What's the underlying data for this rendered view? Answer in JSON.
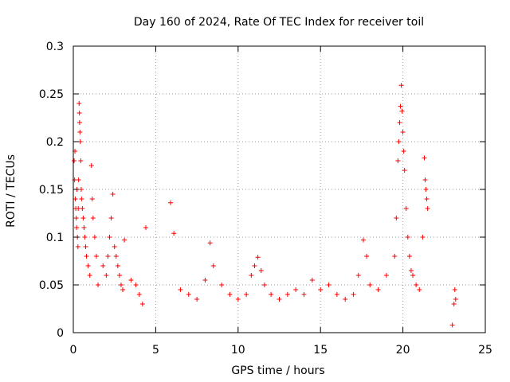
{
  "chart_data": {
    "type": "scatter",
    "title": "Day 160 of 2024, Rate Of TEC Index for receiver toil",
    "xlabel": "GPS time / hours",
    "ylabel": "ROTI / TECUs",
    "xlim": [
      0,
      25
    ],
    "ylim": [
      0,
      0.3
    ],
    "xticks": [
      0,
      5,
      10,
      15,
      20,
      25
    ],
    "yticks": [
      0,
      0.05,
      0.1,
      0.15,
      0.2,
      0.25,
      0.3
    ],
    "xtick_labels": [
      "0",
      "5",
      "10",
      "15",
      "20",
      "25"
    ],
    "ytick_labels": [
      "0",
      "0.05",
      "0.1",
      "0.15",
      "0.2",
      "0.25",
      "0.3"
    ],
    "grid": true,
    "marker": "+",
    "color": "#ff0000",
    "series": [
      {
        "name": "ROTI",
        "points": [
          [
            0.05,
            0.18
          ],
          [
            0.08,
            0.16
          ],
          [
            0.1,
            0.19
          ],
          [
            0.12,
            0.14
          ],
          [
            0.15,
            0.13
          ],
          [
            0.18,
            0.12
          ],
          [
            0.2,
            0.11
          ],
          [
            0.22,
            0.15
          ],
          [
            0.25,
            0.1
          ],
          [
            0.28,
            0.09
          ],
          [
            0.3,
            0.13
          ],
          [
            0.32,
            0.16
          ],
          [
            0.35,
            0.24
          ],
          [
            0.37,
            0.23
          ],
          [
            0.38,
            0.22
          ],
          [
            0.4,
            0.21
          ],
          [
            0.42,
            0.2
          ],
          [
            0.45,
            0.18
          ],
          [
            0.48,
            0.15
          ],
          [
            0.5,
            0.14
          ],
          [
            0.55,
            0.13
          ],
          [
            0.6,
            0.12
          ],
          [
            0.65,
            0.11
          ],
          [
            0.7,
            0.1
          ],
          [
            0.75,
            0.09
          ],
          [
            0.8,
            0.08
          ],
          [
            0.9,
            0.07
          ],
          [
            1.0,
            0.06
          ],
          [
            1.1,
            0.175
          ],
          [
            1.15,
            0.14
          ],
          [
            1.2,
            0.12
          ],
          [
            1.3,
            0.1
          ],
          [
            1.4,
            0.08
          ],
          [
            1.5,
            0.05
          ],
          [
            1.8,
            0.07
          ],
          [
            2.0,
            0.06
          ],
          [
            2.1,
            0.08
          ],
          [
            2.2,
            0.1
          ],
          [
            2.3,
            0.12
          ],
          [
            2.4,
            0.145
          ],
          [
            2.5,
            0.09
          ],
          [
            2.6,
            0.08
          ],
          [
            2.7,
            0.07
          ],
          [
            2.8,
            0.06
          ],
          [
            2.9,
            0.05
          ],
          [
            3.0,
            0.045
          ],
          [
            3.1,
            0.097
          ],
          [
            3.5,
            0.055
          ],
          [
            3.8,
            0.05
          ],
          [
            4.0,
            0.04
          ],
          [
            4.2,
            0.03
          ],
          [
            4.4,
            0.11
          ],
          [
            5.9,
            0.136
          ],
          [
            6.1,
            0.104
          ],
          [
            6.5,
            0.045
          ],
          [
            7.0,
            0.04
          ],
          [
            7.5,
            0.035
          ],
          [
            8.0,
            0.055
          ],
          [
            8.3,
            0.094
          ],
          [
            8.5,
            0.07
          ],
          [
            9.0,
            0.05
          ],
          [
            9.5,
            0.04
          ],
          [
            10.0,
            0.035
          ],
          [
            10.5,
            0.04
          ],
          [
            10.8,
            0.06
          ],
          [
            11.0,
            0.07
          ],
          [
            11.2,
            0.079
          ],
          [
            11.4,
            0.065
          ],
          [
            11.6,
            0.05
          ],
          [
            12.0,
            0.04
          ],
          [
            12.5,
            0.035
          ],
          [
            13.0,
            0.04
          ],
          [
            13.5,
            0.045
          ],
          [
            14.0,
            0.04
          ],
          [
            14.5,
            0.055
          ],
          [
            15.0,
            0.045
          ],
          [
            15.5,
            0.05
          ],
          [
            16.0,
            0.04
          ],
          [
            16.5,
            0.035
          ],
          [
            17.0,
            0.04
          ],
          [
            17.3,
            0.06
          ],
          [
            17.6,
            0.097
          ],
          [
            17.8,
            0.08
          ],
          [
            18.0,
            0.05
          ],
          [
            18.5,
            0.045
          ],
          [
            19.0,
            0.06
          ],
          [
            19.5,
            0.08
          ],
          [
            19.6,
            0.12
          ],
          [
            19.7,
            0.18
          ],
          [
            19.75,
            0.2
          ],
          [
            19.8,
            0.22
          ],
          [
            19.85,
            0.237
          ],
          [
            19.9,
            0.259
          ],
          [
            19.95,
            0.232
          ],
          [
            20.0,
            0.21
          ],
          [
            20.05,
            0.19
          ],
          [
            20.1,
            0.17
          ],
          [
            20.2,
            0.13
          ],
          [
            20.3,
            0.1
          ],
          [
            20.4,
            0.08
          ],
          [
            20.5,
            0.065
          ],
          [
            20.6,
            0.06
          ],
          [
            20.8,
            0.05
          ],
          [
            21.0,
            0.045
          ],
          [
            21.2,
            0.1
          ],
          [
            21.3,
            0.183
          ],
          [
            21.35,
            0.16
          ],
          [
            21.4,
            0.15
          ],
          [
            21.45,
            0.14
          ],
          [
            21.5,
            0.13
          ],
          [
            23.0,
            0.008
          ],
          [
            23.1,
            0.03
          ],
          [
            23.15,
            0.045
          ],
          [
            23.2,
            0.035
          ]
        ]
      }
    ]
  }
}
